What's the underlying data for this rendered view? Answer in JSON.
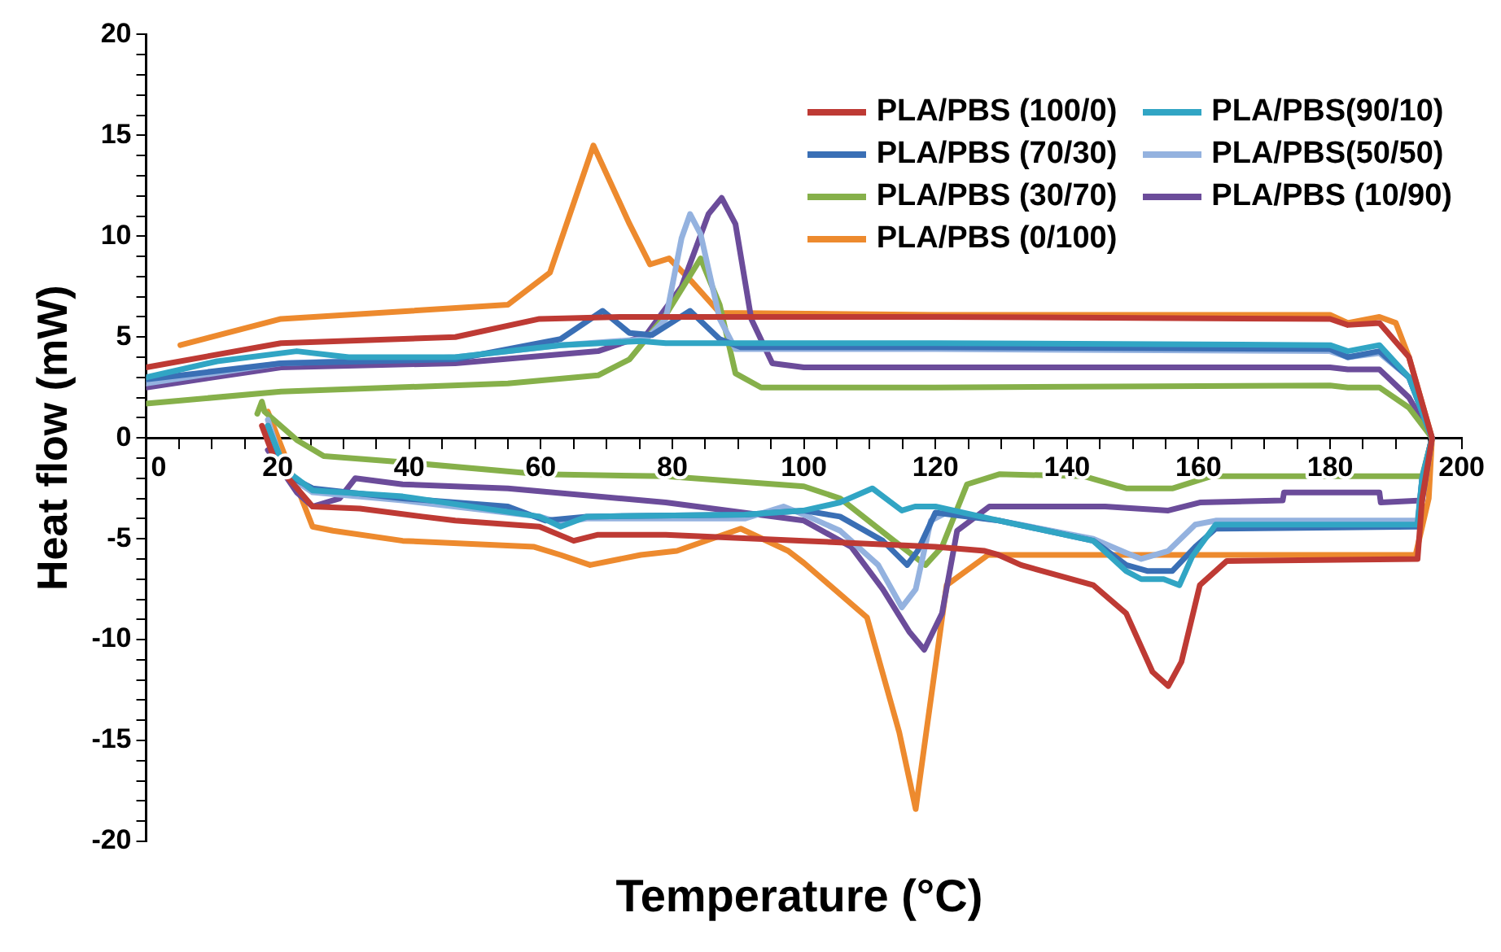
{
  "chart_data": {
    "type": "line",
    "xlabel": "Temperature (°C)",
    "ylabel": "Heat flow (mW)",
    "xlim": [
      0,
      200
    ],
    "ylim": [
      -20,
      20
    ],
    "xticks": [
      0,
      {
        "value": 5,
        "label": null
      },
      {
        "value": 10,
        "label": null
      },
      {
        "value": 15,
        "label": null
      },
      20,
      {
        "value": 25,
        "label": null
      },
      {
        "value": 30,
        "label": null
      },
      {
        "value": 35,
        "label": null
      },
      40,
      {
        "value": 45,
        "label": null
      },
      {
        "value": 50,
        "label": null
      },
      {
        "value": 55,
        "label": null
      },
      60,
      {
        "value": 65,
        "label": null
      },
      {
        "value": 70,
        "label": null
      },
      {
        "value": 75,
        "label": null
      },
      80,
      {
        "value": 85,
        "label": null
      },
      {
        "value": 90,
        "label": null
      },
      {
        "value": 95,
        "label": null
      },
      100,
      {
        "value": 105,
        "label": null
      },
      {
        "value": 110,
        "label": null
      },
      {
        "value": 115,
        "label": null
      },
      120,
      {
        "value": 125,
        "label": null
      },
      {
        "value": 130,
        "label": null
      },
      {
        "value": 135,
        "label": null
      },
      140,
      {
        "value": 145,
        "label": null
      },
      {
        "value": 150,
        "label": null
      },
      {
        "value": 155,
        "label": null
      },
      160,
      {
        "value": 165,
        "label": null
      },
      {
        "value": 170,
        "label": null
      },
      {
        "value": 175,
        "label": null
      },
      180,
      {
        "value": 185,
        "label": null
      },
      {
        "value": 190,
        "label": null
      },
      {
        "value": 195,
        "label": null
      },
      200
    ],
    "yticks": [
      -20,
      {
        "value": -19,
        "label": null
      },
      {
        "value": -18,
        "label": null
      },
      {
        "value": -17,
        "label": null
      },
      {
        "value": -16,
        "label": null
      },
      -15,
      {
        "value": -14,
        "label": null
      },
      {
        "value": -13,
        "label": null
      },
      {
        "value": -12,
        "label": null
      },
      {
        "value": -11,
        "label": null
      },
      -10,
      {
        "value": -9,
        "label": null
      },
      {
        "value": -8,
        "label": null
      },
      {
        "value": -7,
        "label": null
      },
      {
        "value": -6,
        "label": null
      },
      -5,
      {
        "value": -4,
        "label": null
      },
      {
        "value": -3,
        "label": null
      },
      {
        "value": -2,
        "label": null
      },
      {
        "value": -1,
        "label": null
      },
      0,
      {
        "value": 1,
        "label": null
      },
      {
        "value": 2,
        "label": null
      },
      {
        "value": 3,
        "label": null
      },
      {
        "value": 4,
        "label": null
      },
      5,
      {
        "value": 6,
        "label": null
      },
      {
        "value": 7,
        "label": null
      },
      {
        "value": 8,
        "label": null
      },
      {
        "value": 9,
        "label": null
      },
      10,
      {
        "value": 11,
        "label": null
      },
      {
        "value": 12,
        "label": null
      },
      {
        "value": 13,
        "label": null
      },
      {
        "value": 14,
        "label": null
      },
      15,
      {
        "value": 16,
        "label": null
      },
      {
        "value": 17,
        "label": null
      },
      {
        "value": 18,
        "label": null
      },
      {
        "value": 19,
        "label": null
      },
      20
    ],
    "grid": false,
    "legend": "top right",
    "series": [
      {
        "name": "PLA/PBS (100/0)",
        "color": "#be3a34",
        "x": [
          0,
          20.5,
          47,
          59.8,
          72,
          120,
          180,
          182.7,
          187.5,
          192,
          195.5,
          194,
          193.3,
          164.3,
          160.2,
          157.4,
          155.4,
          153,
          149,
          144,
          133,
          129.6,
          127.5,
          120,
          100,
          79,
          68.7,
          65,
          59.8,
          47,
          42,
          32.5,
          25.3,
          19.8,
          17.6
        ],
        "values": [
          3.5,
          4.7,
          5.0,
          5.9,
          6.0,
          6.0,
          5.9,
          5.6,
          5.7,
          4,
          0,
          -3,
          -6.0,
          -6.1,
          -7.3,
          -11.1,
          -12.3,
          -11.6,
          -8.7,
          -7.3,
          -6.3,
          -5.8,
          -5.6,
          -5.4,
          -5.1,
          -4.8,
          -4.8,
          -5.1,
          -4.4,
          -4.1,
          -3.9,
          -3.5,
          -3.4,
          -1.3,
          0.6
        ]
      },
      {
        "name": "PLA/PBS(90/10)",
        "color": "#31a5c4",
        "x": [
          0,
          10.8,
          22.9,
          30.8,
          47,
          63,
          75.2,
          79,
          120,
          180,
          182.7,
          187.5,
          192,
          195.5,
          194,
          193.3,
          162.6,
          159,
          157.1,
          154.7,
          151.3,
          149,
          144,
          129.7,
          120,
          116.9,
          114.9,
          110.4,
          105.5,
          100,
          91,
          67,
          63,
          59.8,
          39,
          25.3,
          21.2,
          18.5
        ],
        "values": [
          3.0,
          3.8,
          4.3,
          4.0,
          4.0,
          4.6,
          4.8,
          4.7,
          4.7,
          4.6,
          4.3,
          4.6,
          3,
          0,
          -2,
          -4.3,
          -4.3,
          -5.9,
          -7.3,
          -7.0,
          -7.0,
          -6.6,
          -5.1,
          -4.1,
          -3.4,
          -3.4,
          -3.6,
          -2.5,
          -3.2,
          -3.6,
          -3.8,
          -3.9,
          -4.4,
          -3.9,
          -2.9,
          -2.6,
          -1.6,
          0.6
        ]
      },
      {
        "name": "PLA/PBS (70/30)",
        "color": "#3a6fb5",
        "x": [
          0,
          20.5,
          47,
          63,
          69.4,
          73.5,
          76.9,
          82.7,
          87.2,
          90.4,
          120,
          180,
          182.7,
          187.5,
          192,
          195.5,
          194,
          193.3,
          162.6,
          159.5,
          156,
          152.3,
          149,
          144,
          129.7,
          120,
          117.3,
          115.7,
          112,
          105.5,
          100,
          91,
          67,
          60.7,
          55,
          39,
          25.3,
          21.2,
          18.5
        ],
        "values": [
          2.9,
          3.7,
          3.9,
          4.9,
          6.3,
          5.2,
          5.1,
          6.3,
          4.9,
          4.5,
          4.5,
          4.4,
          4.0,
          4.3,
          3,
          0,
          -2,
          -4.4,
          -4.5,
          -5.4,
          -6.6,
          -6.6,
          -6.3,
          -5.1,
          -4.1,
          -3.7,
          -5.6,
          -6.3,
          -5.1,
          -3.9,
          -3.6,
          -3.8,
          -3.9,
          -4.1,
          -3.4,
          -3.0,
          -2.5,
          -1.8,
          0.6
        ]
      },
      {
        "name": "PLA/PBS(50/50)",
        "color": "#94b2df",
        "x": [
          0,
          20.5,
          47,
          63,
          76,
          79,
          81.4,
          82.7,
          84.3,
          87.2,
          89.6,
          120,
          180,
          182.7,
          187.5,
          192,
          195.5,
          194,
          193.3,
          162.6,
          159.5,
          155.4,
          151.3,
          149,
          144,
          129.7,
          121.7,
          119.3,
          117,
          114.9,
          111.3,
          105.5,
          100,
          96.9,
          91,
          67,
          63,
          59.8,
          39,
          25.3,
          21.2,
          18.5
        ],
        "values": [
          2.7,
          3.7,
          4.0,
          4.6,
          4.9,
          5.9,
          9.9,
          11.1,
          10.1,
          5.9,
          4.4,
          4.4,
          4.3,
          4.0,
          4.2,
          3,
          0,
          -2,
          -4.1,
          -4.1,
          -4.3,
          -5.6,
          -6.0,
          -5.7,
          -5.0,
          -4.1,
          -3.7,
          -4.1,
          -7.5,
          -8.4,
          -6.3,
          -4.6,
          -3.8,
          -3.4,
          -4.0,
          -4.0,
          -4.2,
          -3.9,
          -3.1,
          -2.7,
          -1.8,
          0.9
        ]
      },
      {
        "name": "PLA/PBS (30/70)",
        "color": "#86b04a",
        "x": [
          0,
          20.5,
          55,
          68.7,
          73.5,
          79,
          84.3,
          87.2,
          89.6,
          93.5,
          120,
          180,
          182.7,
          187.5,
          192,
          195.5,
          194,
          161.9,
          156.1,
          149,
          142.6,
          129.7,
          124.8,
          121,
          118.5,
          113.7,
          105.5,
          100,
          79,
          59.8,
          39,
          27,
          22.9,
          18,
          17.6,
          16.9
        ],
        "values": [
          1.7,
          2.3,
          2.7,
          3.1,
          3.9,
          6.1,
          8.9,
          6.6,
          3.2,
          2.5,
          2.5,
          2.6,
          2.5,
          2.5,
          1.5,
          0,
          -1.9,
          -1.9,
          -2.5,
          -2.5,
          -1.9,
          -1.8,
          -2.3,
          -5.4,
          -6.3,
          -5.1,
          -3.0,
          -2.4,
          -1.9,
          -1.8,
          -1.2,
          -0.9,
          -0.1,
          1.3,
          1.8,
          1.2
        ]
      },
      {
        "name": "PLA/PBS (10/90)",
        "color": "#6b4c9a",
        "x": [
          0,
          20.5,
          47,
          68.7,
          76,
          81.4,
          85.5,
          87.5,
          89.6,
          92,
          95.2,
          100,
          180,
          182.7,
          187.5,
          192,
          195.5,
          194,
          187.7,
          187.5,
          173,
          172.8,
          160.2,
          155.4,
          145.8,
          128.2,
          123.3,
          121,
          118.3,
          116,
          112,
          107.2,
          100,
          79,
          55,
          39,
          31.8,
          29.4,
          25.3,
          22.9,
          18.5
        ],
        "values": [
          2.5,
          3.5,
          3.7,
          4.3,
          5.1,
          7.5,
          11.1,
          11.9,
          10.6,
          5.9,
          3.7,
          3.5,
          3.5,
          3.4,
          3.4,
          2,
          0,
          -3.1,
          -3.2,
          -2.7,
          -2.7,
          -3.1,
          -3.2,
          -3.6,
          -3.4,
          -3.4,
          -4.6,
          -8.7,
          -10.5,
          -9.6,
          -7.5,
          -5.4,
          -4.1,
          -3.2,
          -2.5,
          -2.3,
          -2.0,
          -3.0,
          -3.4,
          -2.7,
          -0.6
        ]
      },
      {
        "name": "PLA/PBS (0/100)",
        "color": "#ed8a2e",
        "x": [
          5.2,
          20.5,
          55,
          61.4,
          68,
          73.5,
          76.6,
          79.5,
          83.1,
          87.2,
          120,
          180,
          182.7,
          187.5,
          190,
          192,
          195.5,
          195,
          193,
          128,
          121.7,
          118.6,
          117,
          114.5,
          109.6,
          100,
          97.6,
          90.4,
          80.7,
          75.2,
          67.5,
          63,
          59,
          39,
          28.4,
          25.3,
          18.5
        ],
        "values": [
          4.6,
          5.9,
          6.6,
          8.2,
          14.5,
          10.6,
          8.6,
          8.9,
          7.7,
          6.2,
          6.1,
          6.1,
          5.7,
          6.0,
          5.7,
          4,
          0,
          -3,
          -5.8,
          -5.8,
          -7.3,
          -14.6,
          -18.4,
          -14.6,
          -8.9,
          -6.2,
          -5.6,
          -4.5,
          -5.6,
          -5.8,
          -6.3,
          -5.8,
          -5.4,
          -5.1,
          -4.6,
          -4.4,
          1.3
        ]
      }
    ]
  }
}
